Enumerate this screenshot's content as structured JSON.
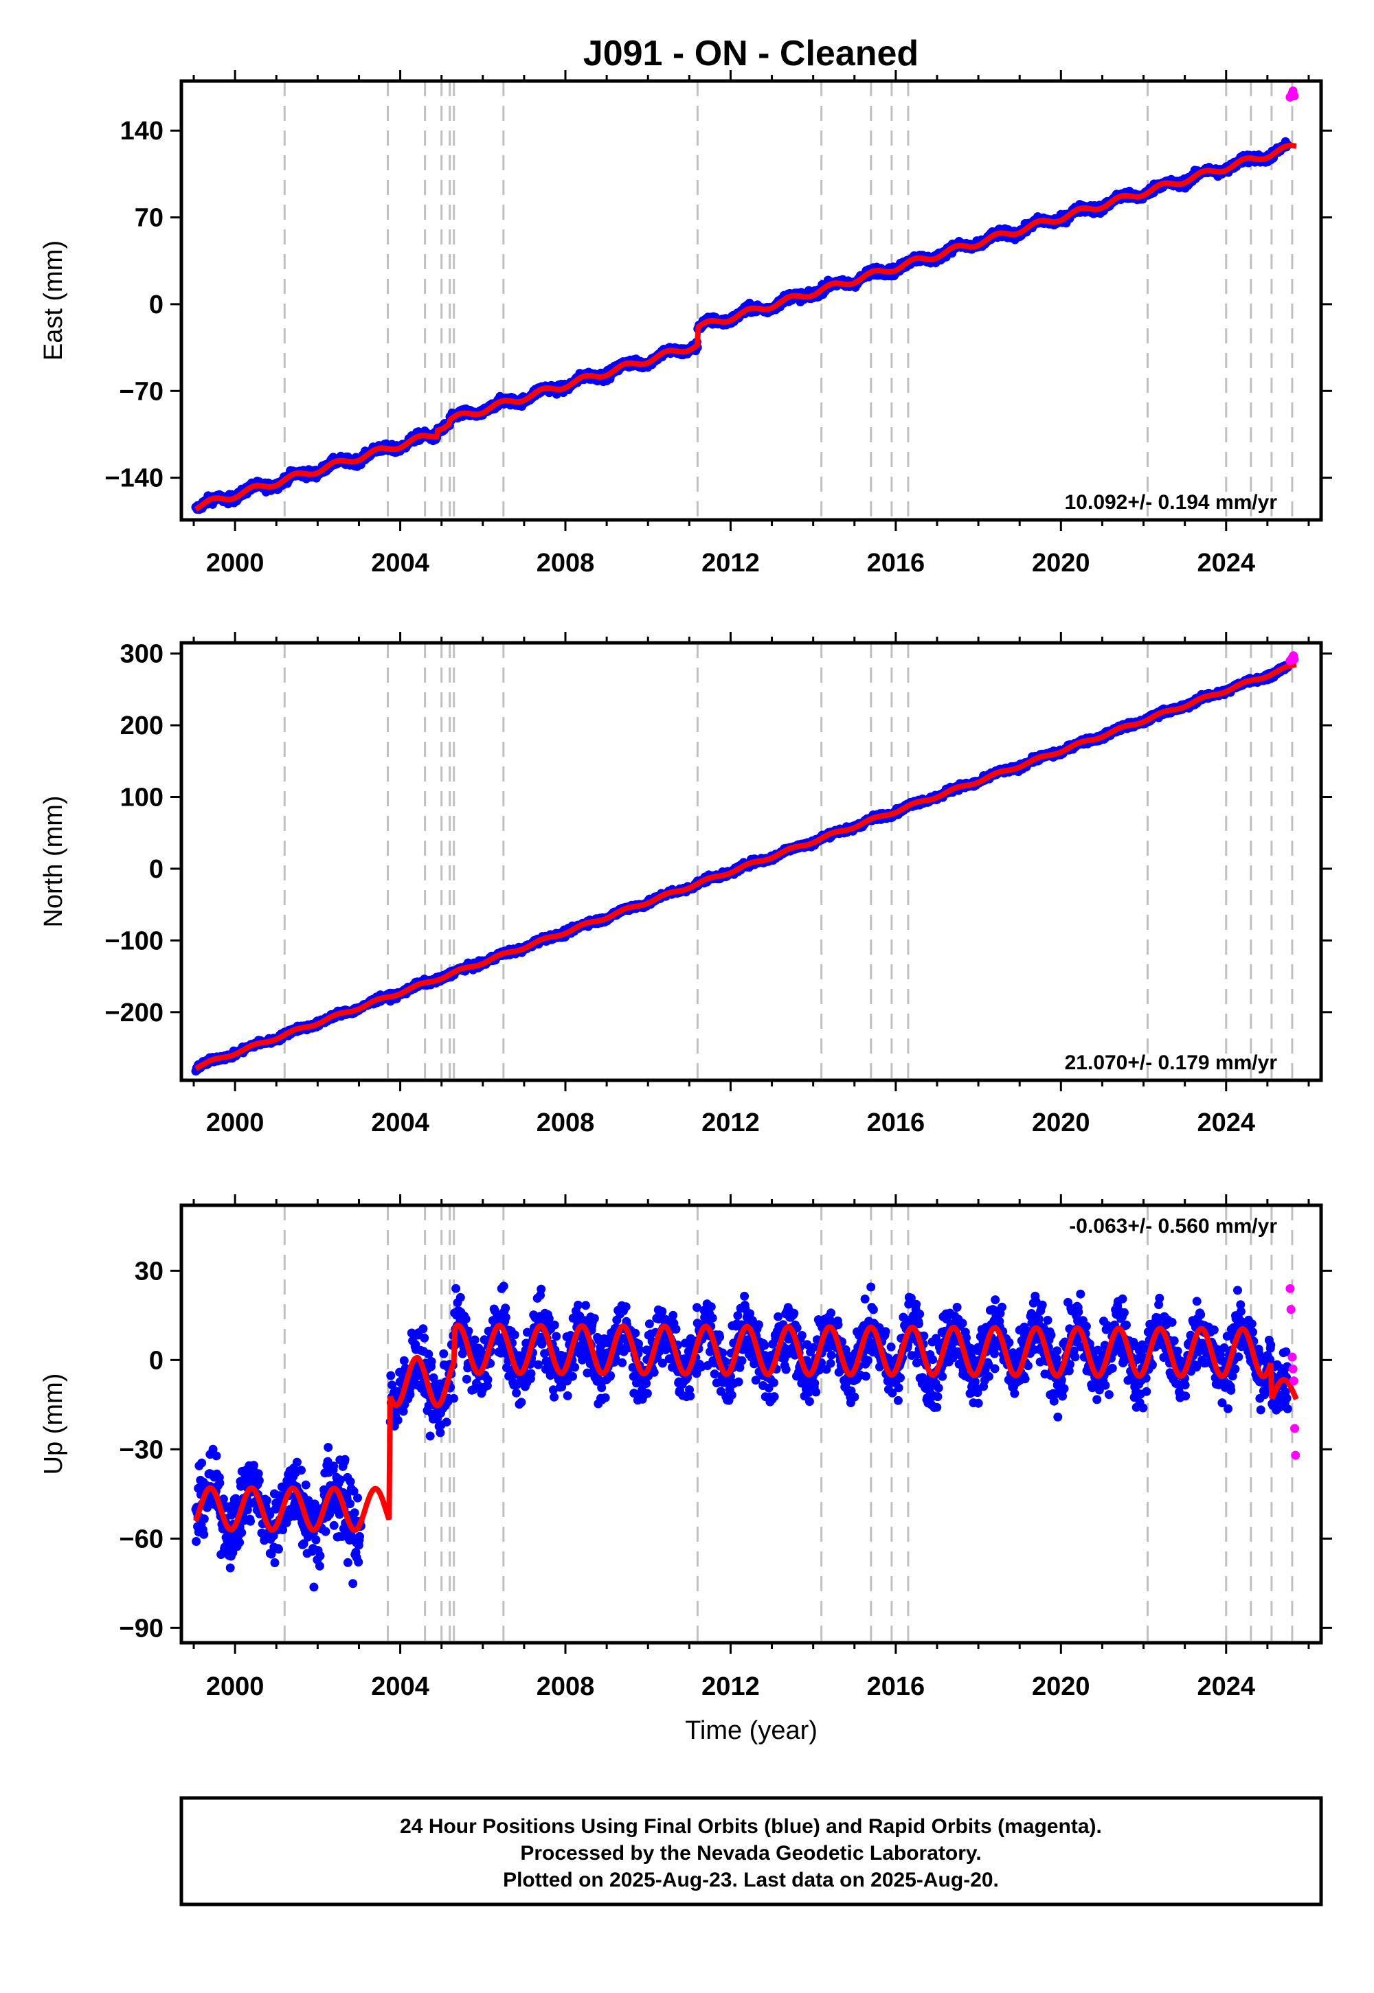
{
  "title": "J091  - ON - Cleaned",
  "colors": {
    "final_orbits": "#0000ff",
    "rapid_orbits": "#ff00ff",
    "model": "#ff0000",
    "event_lines": "#c0c0c0"
  },
  "event_lines": [
    2001.2,
    2003.7,
    2004.6,
    2005.0,
    2005.2,
    2005.3,
    2006.5,
    2011.2,
    2014.2,
    2015.4,
    2015.9,
    2016.3,
    2022.1,
    2024.0,
    2024.6,
    2025.1,
    2025.6
  ],
  "x_ticks": [
    2000,
    2004,
    2008,
    2012,
    2016,
    2020,
    2024
  ],
  "xlim": [
    1998.7,
    2026.3
  ],
  "chart_data": [
    {
      "type": "scatter",
      "ylabel": "East (mm)",
      "ylim": [
        -174,
        180
      ],
      "y_ticks": [
        140,
        70,
        0,
        -70,
        -140
      ],
      "y_tick_labels": [
        "140",
        "70",
        "0",
        "−70",
        "−140"
      ],
      "rate_label": "10.092+/- 0.194 mm/yr",
      "rate_position": "bottom-right",
      "model": {
        "velocity": 10.092,
        "start": [
          1999.0,
          -164
        ],
        "steps": [
          [
            2004.9,
            5
          ],
          [
            2005.2,
            3
          ],
          [
            2011.2,
            14
          ]
        ],
        "annual_amplitude": 2.5,
        "noise": 2.5
      },
      "rapid_points": [
        [
          2025.55,
          167
        ],
        [
          2025.6,
          170
        ],
        [
          2025.62,
          172
        ],
        [
          2025.65,
          168
        ]
      ]
    },
    {
      "type": "scatter",
      "ylabel": "North (mm)",
      "ylim": [
        -295,
        315
      ],
      "y_ticks": [
        300,
        200,
        100,
        0,
        -100,
        -200
      ],
      "y_tick_labels": [
        "300",
        "200",
        "100",
        "0",
        "−100",
        "−200"
      ],
      "rate_label": "21.070+/- 0.179 mm/yr",
      "rate_position": "bottom-right",
      "model": {
        "velocity": 21.07,
        "start": [
          1999.0,
          -278
        ],
        "steps": [],
        "annual_amplitude": 2,
        "noise": 3
      },
      "rapid_points": [
        [
          2025.55,
          290
        ],
        [
          2025.6,
          294
        ],
        [
          2025.63,
          297
        ],
        [
          2025.65,
          292
        ]
      ]
    },
    {
      "type": "scatter",
      "ylabel": "Up (mm)",
      "xlabel": "Time (year)",
      "ylim": [
        -95,
        52
      ],
      "y_ticks": [
        30,
        0,
        -30,
        -60,
        -90
      ],
      "y_tick_labels": [
        "30",
        "0",
        "−30",
        "−60",
        "−90"
      ],
      "rate_label": "-0.063+/- 0.560 mm/yr",
      "rate_position": "top-right",
      "model": {
        "velocity": -0.063,
        "segments": [
          {
            "from": 1999.0,
            "to": 2003.75,
            "base": -50,
            "amp": 7
          },
          {
            "from": 2003.75,
            "to": 2005.3,
            "base": -7,
            "amp": 8
          },
          {
            "from": 2005.3,
            "to": 2025.1,
            "base": 4,
            "amp": 8
          },
          {
            "from": 2025.1,
            "to": 2025.7,
            "base": -10,
            "amp": 5
          }
        ],
        "noise": 8
      },
      "rapid_points": [
        [
          2025.55,
          24
        ],
        [
          2025.57,
          17
        ],
        [
          2025.6,
          1
        ],
        [
          2025.62,
          -3
        ],
        [
          2025.64,
          -7
        ],
        [
          2025.66,
          -23
        ],
        [
          2025.68,
          -32
        ]
      ]
    }
  ],
  "footer": {
    "line1": "24 Hour Positions Using Final Orbits (blue) and Rapid Orbits (magenta).",
    "line2": "Processed by the Nevada Geodetic Laboratory.",
    "line3": "Plotted on 2025-Aug-23. Last data on 2025-Aug-20."
  }
}
